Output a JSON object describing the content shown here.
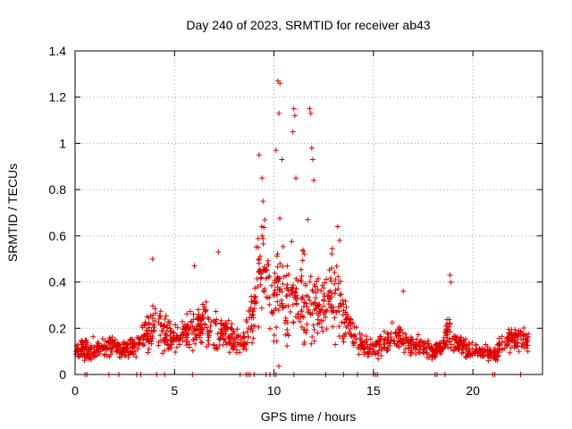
{
  "chart_data": {
    "type": "scatter",
    "title": "Day 240 of 2023, SRMTID for receiver ab43",
    "xlabel": "GPS time / hours",
    "ylabel": "SRMTID / TECUs",
    "xlim": [
      0,
      23.5
    ],
    "ylim": [
      0,
      1.4
    ],
    "x_ticks": [
      0,
      5,
      10,
      15,
      20
    ],
    "x_tick_labels": [
      "0",
      "5",
      "10",
      "15",
      "20"
    ],
    "y_ticks": [
      0,
      0.2,
      0.4,
      0.6,
      0.8,
      1.0,
      1.2,
      1.4
    ],
    "y_tick_labels": [
      "0",
      "0.2",
      "0.4",
      "0.6",
      "0.8",
      "1",
      "1.2",
      "1.4"
    ],
    "grid": true,
    "marker": "+",
    "color": "#e00000",
    "envelope": {
      "description": "approximate median and spread of the scattered SRMTID samples read from the plot",
      "x": [
        0.0,
        0.5,
        1.0,
        1.5,
        2.0,
        2.5,
        3.0,
        3.5,
        4.0,
        4.5,
        5.0,
        5.5,
        6.0,
        6.5,
        7.0,
        7.5,
        8.0,
        8.5,
        9.0,
        9.3,
        9.6,
        10.0,
        10.3,
        10.6,
        11.0,
        11.3,
        11.6,
        12.0,
        12.3,
        12.6,
        13.0,
        13.3,
        13.7,
        14.0,
        14.5,
        15.0,
        15.5,
        16.0,
        16.5,
        17.0,
        17.5,
        18.0,
        18.5,
        18.8,
        19.0,
        19.5,
        20.0,
        20.5,
        21.0,
        21.5,
        22.0,
        22.5,
        22.8
      ],
      "median": [
        0.1,
        0.1,
        0.11,
        0.12,
        0.12,
        0.1,
        0.12,
        0.18,
        0.22,
        0.18,
        0.16,
        0.18,
        0.2,
        0.22,
        0.2,
        0.18,
        0.15,
        0.14,
        0.3,
        0.5,
        0.45,
        0.3,
        0.4,
        0.3,
        0.35,
        0.3,
        0.32,
        0.3,
        0.3,
        0.32,
        0.35,
        0.3,
        0.22,
        0.18,
        0.12,
        0.12,
        0.14,
        0.16,
        0.14,
        0.12,
        0.12,
        0.1,
        0.12,
        0.2,
        0.14,
        0.12,
        0.1,
        0.1,
        0.08,
        0.13,
        0.16,
        0.15,
        0.14
      ],
      "spread": [
        0.05,
        0.07,
        0.06,
        0.06,
        0.06,
        0.05,
        0.06,
        0.12,
        0.18,
        0.12,
        0.08,
        0.09,
        0.12,
        0.14,
        0.14,
        0.1,
        0.08,
        0.08,
        0.2,
        0.35,
        0.25,
        0.2,
        0.5,
        0.3,
        0.35,
        0.2,
        0.4,
        0.25,
        0.2,
        0.2,
        0.25,
        0.2,
        0.12,
        0.1,
        0.06,
        0.06,
        0.08,
        0.1,
        0.08,
        0.06,
        0.06,
        0.05,
        0.06,
        0.15,
        0.06,
        0.06,
        0.05,
        0.05,
        0.04,
        0.07,
        0.08,
        0.07,
        0.06
      ]
    },
    "peaks": [
      {
        "x": 9.25,
        "y": 0.95
      },
      {
        "x": 9.4,
        "y": 0.85
      },
      {
        "x": 9.45,
        "y": 0.75
      },
      {
        "x": 10.1,
        "y": 0.97
      },
      {
        "x": 10.2,
        "y": 1.27
      },
      {
        "x": 10.3,
        "y": 1.26
      },
      {
        "x": 10.4,
        "y": 0.93
      },
      {
        "x": 10.25,
        "y": 1.13
      },
      {
        "x": 11.0,
        "y": 1.15
      },
      {
        "x": 11.05,
        "y": 1.12
      },
      {
        "x": 10.95,
        "y": 1.05
      },
      {
        "x": 11.1,
        "y": 0.85
      },
      {
        "x": 11.8,
        "y": 1.15
      },
      {
        "x": 11.85,
        "y": 1.13
      },
      {
        "x": 11.9,
        "y": 0.98
      },
      {
        "x": 11.95,
        "y": 0.93
      },
      {
        "x": 12.0,
        "y": 0.84
      },
      {
        "x": 11.7,
        "y": 0.67
      },
      {
        "x": 13.2,
        "y": 0.64
      },
      {
        "x": 13.3,
        "y": 0.58
      },
      {
        "x": 16.5,
        "y": 0.36
      },
      {
        "x": 18.85,
        "y": 0.43
      },
      {
        "x": 18.9,
        "y": 0.4
      },
      {
        "x": 3.9,
        "y": 0.5
      },
      {
        "x": 7.2,
        "y": 0.53
      },
      {
        "x": 6.0,
        "y": 0.47
      }
    ],
    "baseline_x": [
      0.5,
      0.6,
      1.7,
      2.2,
      3.1,
      3.3,
      4.1,
      4.5,
      5.9,
      8.3,
      8.6,
      8.7,
      8.8,
      9.0,
      9.6,
      9.8,
      10.0,
      10.1,
      11.0,
      12.6,
      13.5,
      14.2,
      15.0,
      15.1,
      15.2,
      18.1,
      18.2,
      18.6,
      21.0,
      21.1,
      22.4
    ]
  }
}
